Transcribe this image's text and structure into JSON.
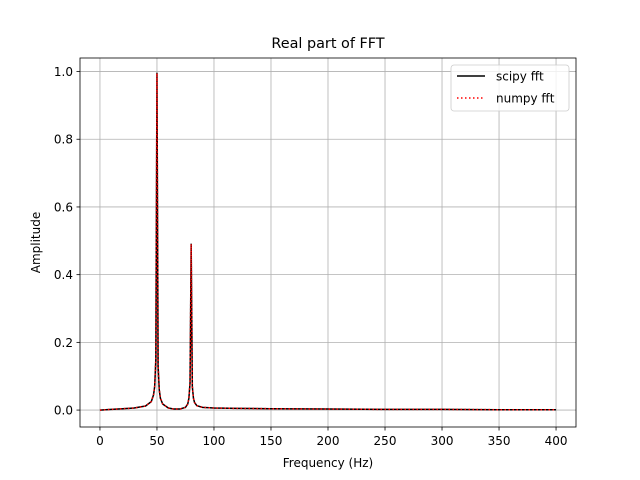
{
  "chart_data": {
    "type": "line",
    "title": "Real part of FFT",
    "xlabel": "Frequency (Hz)",
    "ylabel": "Amplitude",
    "xlim": [
      -17.5,
      417.5
    ],
    "ylim": [
      -0.05,
      1.04
    ],
    "xticks": [
      0,
      50,
      100,
      150,
      200,
      250,
      300,
      350,
      400
    ],
    "xtick_labels": [
      "0",
      "50",
      "100",
      "150",
      "200",
      "250",
      "300",
      "350",
      "400"
    ],
    "yticks": [
      0.0,
      0.2,
      0.4,
      0.6,
      0.8,
      1.0
    ],
    "ytick_labels": [
      "0.0",
      "0.2",
      "0.4",
      "0.6",
      "0.8",
      "1.0"
    ],
    "grid": true,
    "legend_position": "top-right",
    "series": [
      {
        "name": "scipy fft",
        "color": "#000000",
        "style": "solid",
        "x": [
          0,
          10,
          20,
          30,
          40,
          45,
          47,
          48,
          49,
          50,
          51,
          52,
          53,
          55,
          60,
          65,
          70,
          75,
          77,
          78,
          79,
          80,
          81,
          82,
          83,
          85,
          90,
          100,
          120,
          150,
          200,
          250,
          300,
          350,
          400
        ],
        "y": [
          0,
          0.002,
          0.004,
          0.006,
          0.012,
          0.025,
          0.045,
          0.07,
          0.15,
          0.995,
          0.13,
          0.06,
          0.035,
          0.018,
          0.006,
          0.003,
          0.003,
          0.008,
          0.018,
          0.035,
          0.08,
          0.49,
          0.07,
          0.035,
          0.022,
          0.013,
          0.008,
          0.006,
          0.005,
          0.004,
          0.003,
          0.002,
          0.002,
          0.001,
          0.001
        ]
      },
      {
        "name": "numpy fft",
        "color": "#ff0000",
        "style": "dotted",
        "x": [
          0,
          10,
          20,
          30,
          40,
          45,
          47,
          48,
          49,
          50,
          51,
          52,
          53,
          55,
          60,
          65,
          70,
          75,
          77,
          78,
          79,
          80,
          81,
          82,
          83,
          85,
          90,
          100,
          120,
          150,
          200,
          250,
          300,
          350,
          400
        ],
        "y": [
          0,
          0.002,
          0.004,
          0.006,
          0.012,
          0.025,
          0.045,
          0.07,
          0.15,
          0.995,
          0.13,
          0.06,
          0.035,
          0.018,
          0.006,
          0.003,
          0.003,
          0.008,
          0.018,
          0.035,
          0.08,
          0.49,
          0.07,
          0.035,
          0.022,
          0.013,
          0.008,
          0.006,
          0.005,
          0.004,
          0.003,
          0.002,
          0.002,
          0.001,
          0.001
        ]
      }
    ]
  }
}
